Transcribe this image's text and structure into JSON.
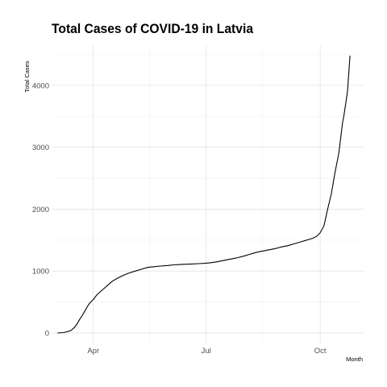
{
  "chart_data": {
    "type": "line",
    "title": "Total Cases of COVID-19 in Latvia",
    "xlabel": "Month",
    "ylabel": "Total Cases",
    "x_ticks": [
      {
        "date": "2020-04-01",
        "label": "Apr"
      },
      {
        "date": "2020-07-01",
        "label": "Jul"
      },
      {
        "date": "2020-10-01",
        "label": "Oct"
      }
    ],
    "y_ticks": [
      0,
      1000,
      2000,
      3000,
      4000
    ],
    "xlim": [
      "2020-02-28",
      "2020-11-05"
    ],
    "ylim": [
      -170,
      4650
    ],
    "grid": true,
    "series": [
      {
        "color": "#000000",
        "x": [
          "2020-03-03",
          "2020-03-08",
          "2020-03-11",
          "2020-03-14",
          "2020-03-17",
          "2020-03-19",
          "2020-03-21",
          "2020-03-23",
          "2020-03-25",
          "2020-03-27",
          "2020-03-29",
          "2020-04-01",
          "2020-04-04",
          "2020-04-08",
          "2020-04-12",
          "2020-04-16",
          "2020-04-20",
          "2020-04-25",
          "2020-04-30",
          "2020-05-05",
          "2020-05-10",
          "2020-05-15",
          "2020-05-20",
          "2020-05-25",
          "2020-05-31",
          "2020-06-05",
          "2020-06-10",
          "2020-06-15",
          "2020-06-20",
          "2020-06-25",
          "2020-06-30",
          "2020-07-05",
          "2020-07-10",
          "2020-07-15",
          "2020-07-20",
          "2020-07-25",
          "2020-07-31",
          "2020-08-05",
          "2020-08-10",
          "2020-08-15",
          "2020-08-20",
          "2020-08-25",
          "2020-08-31",
          "2020-09-05",
          "2020-09-10",
          "2020-09-15",
          "2020-09-20",
          "2020-09-25",
          "2020-09-28",
          "2020-10-01",
          "2020-10-04",
          "2020-10-07",
          "2020-10-10",
          "2020-10-13",
          "2020-10-16",
          "2020-10-19",
          "2020-10-20",
          "2020-10-23",
          "2020-10-25"
        ],
        "values": [
          0,
          6,
          20,
          40,
          95,
          150,
          220,
          280,
          350,
          420,
          480,
          540,
          620,
          690,
          760,
          830,
          880,
          930,
          970,
          1000,
          1030,
          1060,
          1070,
          1080,
          1090,
          1100,
          1105,
          1110,
          1115,
          1120,
          1125,
          1135,
          1150,
          1170,
          1190,
          1210,
          1240,
          1270,
          1300,
          1320,
          1340,
          1360,
          1390,
          1410,
          1440,
          1470,
          1500,
          1530,
          1560,
          1620,
          1730,
          2000,
          2250,
          2600,
          2900,
          3400,
          3500,
          3900,
          4480
        ]
      }
    ]
  }
}
